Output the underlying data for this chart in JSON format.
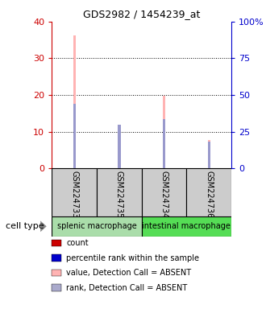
{
  "title": "GDS2982 / 1454239_at",
  "samples": [
    "GSM224733",
    "GSM224735",
    "GSM224734",
    "GSM224736"
  ],
  "cell_types": [
    {
      "label": "splenic macrophage",
      "samples": [
        0,
        1
      ],
      "color": "#aaddaa"
    },
    {
      "label": "intestinal macrophage",
      "samples": [
        2,
        3
      ],
      "color": "#55dd55"
    }
  ],
  "pink_bars": [
    36.2,
    11.3,
    19.8,
    7.8
  ],
  "blue_bars": [
    17.5,
    12.0,
    13.5,
    7.2
  ],
  "ylim_left": [
    0,
    40
  ],
  "ylim_right": [
    0,
    100
  ],
  "yticks_left": [
    0,
    10,
    20,
    30,
    40
  ],
  "yticks_right": [
    0,
    25,
    50,
    75,
    100
  ],
  "ytick_labels_right": [
    "0",
    "25",
    "50",
    "75",
    "100%"
  ],
  "bar_width": 0.06,
  "pink_color": "#ffb3b3",
  "blue_color": "#9999cc",
  "axis_left_color": "#cc0000",
  "axis_right_color": "#0000cc",
  "sample_box_color": "#cccccc",
  "legend_items": [
    {
      "color": "#cc0000",
      "label": "count"
    },
    {
      "color": "#0000cc",
      "label": "percentile rank within the sample"
    },
    {
      "color": "#ffb3b3",
      "label": "value, Detection Call = ABSENT"
    },
    {
      "color": "#aaaacc",
      "label": "rank, Detection Call = ABSENT"
    }
  ],
  "cell_type_label": "cell type",
  "grid_yticks": [
    10,
    20,
    30
  ]
}
